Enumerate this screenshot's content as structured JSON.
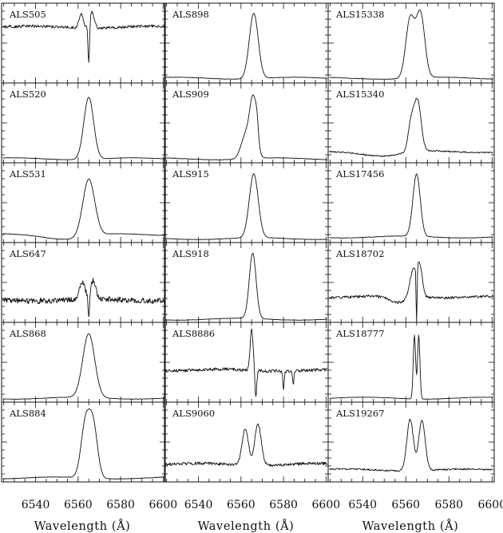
{
  "chart_data": {
    "type": "line",
    "layout": "grid 6 rows x 3 columns of small-multiple spectra",
    "xlabel": "Wavelength (Å)",
    "x_ticks": [
      6540,
      6560,
      6580,
      6600
    ],
    "x_range": [
      6524,
      6601
    ],
    "line_center": 6563,
    "grid": false,
    "columns": [
      {
        "panels": [
          {
            "label": "ALS505",
            "profile": "weak emission with central absorption",
            "continuum": 0.7,
            "noise": 0.018,
            "components": [
              {
                "center": 6561.5,
                "amp": 0.17,
                "sigma": 1.0
              },
              {
                "center": 6566.6,
                "amp": 0.2,
                "sigma": 1.0
              },
              {
                "center": 6565.0,
                "amp": -0.5,
                "sigma": 0.35
              }
            ]
          },
          {
            "label": "ALS520",
            "profile": "single-peak emission",
            "continuum": 0.05,
            "noise": 0.002,
            "components": [
              {
                "center": 6565.0,
                "amp": 0.78,
                "sigma": 2.3
              }
            ]
          },
          {
            "label": "ALS531",
            "profile": "single-peak emission with broad absorption wings",
            "continuum": 0.1,
            "noise": 0.003,
            "components": [
              {
                "center": 6565.0,
                "amp": 0.72,
                "sigma": 2.8
              },
              {
                "center": 6555.0,
                "amp": -0.05,
                "sigma": 9.0
              }
            ]
          },
          {
            "label": "ALS647",
            "profile": "double-peak emission with central absorption",
            "continuum": 0.28,
            "noise": 0.035,
            "components": [
              {
                "center": 6562.0,
                "amp": 0.22,
                "sigma": 1.3
              },
              {
                "center": 6567.2,
                "amp": 0.24,
                "sigma": 1.1
              },
              {
                "center": 6565.0,
                "amp": -0.3,
                "sigma": 0.3
              }
            ]
          },
          {
            "label": "ALS868",
            "profile": "single-peak emission",
            "continuum": 0.05,
            "noise": 0.002,
            "components": [
              {
                "center": 6565.0,
                "amp": 0.8,
                "sigma": 2.8
              }
            ]
          },
          {
            "label": "ALS884",
            "profile": "double-peak emission",
            "continuum": 0.05,
            "noise": 0.003,
            "components": [
              {
                "center": 6563.5,
                "amp": 0.68,
                "sigma": 2.1
              },
              {
                "center": 6567.2,
                "amp": 0.62,
                "sigma": 2.0
              }
            ]
          }
        ]
      },
      {
        "panels": [
          {
            "label": "ALS898",
            "profile": "single-peak emission",
            "continuum": 0.06,
            "noise": 0.003,
            "components": [
              {
                "center": 6566.0,
                "amp": 0.82,
                "sigma": 2.1
              }
            ]
          },
          {
            "label": "ALS909",
            "profile": "asymmetric emission with shoulder",
            "continuum": 0.05,
            "noise": 0.003,
            "components": [
              {
                "center": 6565.8,
                "amp": 0.7,
                "sigma": 1.6
              },
              {
                "center": 6562.3,
                "amp": 0.3,
                "sigma": 2.2
              },
              {
                "center": 6567.5,
                "amp": 0.18,
                "sigma": 0.7
              }
            ]
          },
          {
            "label": "ALS915",
            "profile": "single-peak emission",
            "continuum": 0.05,
            "noise": 0.002,
            "components": [
              {
                "center": 6566.0,
                "amp": 0.8,
                "sigma": 2.1
              }
            ]
          },
          {
            "label": "ALS918",
            "profile": "single-peak emission",
            "continuum": 0.04,
            "noise": 0.002,
            "components": [
              {
                "center": 6565.5,
                "amp": 0.82,
                "sigma": 1.6
              }
            ]
          },
          {
            "label": "ALS8886",
            "profile": "emission with absorption and nearby absorption lines",
            "continuum": 0.4,
            "noise": 0.02,
            "components": [
              {
                "center": 6565.0,
                "amp": 0.5,
                "sigma": 0.7
              },
              {
                "center": 6567.0,
                "amp": -0.35,
                "sigma": 0.4
              },
              {
                "center": 6580.0,
                "amp": -0.25,
                "sigma": 0.3
              },
              {
                "center": 6584.6,
                "amp": -0.18,
                "sigma": 0.3
              }
            ]
          },
          {
            "label": "ALS9060",
            "profile": "double-peak emission",
            "continuum": 0.22,
            "noise": 0.018,
            "components": [
              {
                "center": 6562.0,
                "amp": 0.45,
                "sigma": 1.5
              },
              {
                "center": 6568.0,
                "amp": 0.52,
                "sigma": 1.5
              }
            ]
          }
        ]
      },
      {
        "panels": [
          {
            "label": "ALS15338",
            "profile": "double-peak emission",
            "continuum": 0.06,
            "noise": 0.003,
            "components": [
              {
                "center": 6562.0,
                "amp": 0.74,
                "sigma": 2.0
              },
              {
                "center": 6566.8,
                "amp": 0.8,
                "sigma": 2.0
              }
            ]
          },
          {
            "label": "ALS15340",
            "profile": "emission with shoulder",
            "continuum": 0.14,
            "noise": 0.008,
            "components": [
              {
                "center": 6565.5,
                "amp": 0.62,
                "sigma": 1.6
              },
              {
                "center": 6562.5,
                "amp": 0.36,
                "sigma": 1.4
              },
              {
                "center": 6550.0,
                "amp": -0.05,
                "sigma": 8.0
              }
            ]
          },
          {
            "label": "ALS17456",
            "profile": "single-peak emission",
            "continuum": 0.07,
            "noise": 0.003,
            "components": [
              {
                "center": 6565.0,
                "amp": 0.78,
                "sigma": 1.7
              }
            ]
          },
          {
            "label": "ALS18702",
            "profile": "emission with deep central absorption",
            "continuum": 0.32,
            "noise": 0.015,
            "components": [
              {
                "center": 6563.5,
                "amp": 0.35,
                "sigma": 1.6
              },
              {
                "center": 6566.5,
                "amp": 0.36,
                "sigma": 1.2
              },
              {
                "center": 6565.0,
                "amp": -0.8,
                "sigma": 0.22
              },
              {
                "center": 6556.0,
                "amp": -0.08,
                "sigma": 4.0
              }
            ]
          },
          {
            "label": "ALS18777",
            "profile": "narrow double-peak emission",
            "continuum": 0.05,
            "noise": 0.001,
            "components": [
              {
                "center": 6564.0,
                "amp": 0.8,
                "sigma": 0.55
              },
              {
                "center": 6566.0,
                "amp": 0.8,
                "sigma": 0.55
              }
            ]
          },
          {
            "label": "ALS19267",
            "profile": "double-peak emission",
            "continuum": 0.15,
            "noise": 0.01,
            "components": [
              {
                "center": 6562.0,
                "amp": 0.65,
                "sigma": 1.5
              },
              {
                "center": 6567.5,
                "amp": 0.63,
                "sigma": 1.5
              }
            ]
          }
        ]
      }
    ]
  }
}
